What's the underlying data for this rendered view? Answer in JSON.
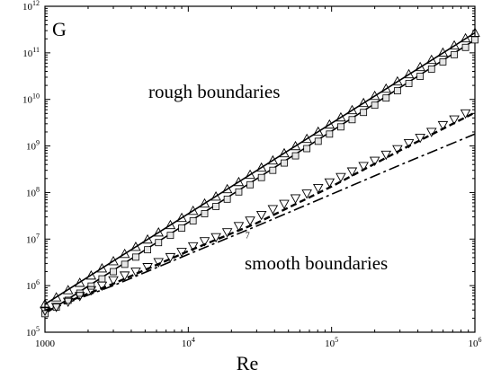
{
  "chart_data": {
    "type": "scatter",
    "title": "",
    "xlabel": "Re",
    "ylabel": "G",
    "xscale": "log",
    "yscale": "log",
    "xlim": [
      1000,
      1000000
    ],
    "ylim": [
      100000,
      1000000000000
    ],
    "grid": false,
    "x_tick_labels": [
      {
        "base": "1000",
        "exp": ""
      },
      {
        "base": "10",
        "exp": "4"
      },
      {
        "base": "10",
        "exp": "5"
      },
      {
        "base": "10",
        "exp": "6"
      }
    ],
    "y_tick_labels": [
      {
        "base": "10",
        "exp": "5"
      },
      {
        "base": "10",
        "exp": "6"
      },
      {
        "base": "10",
        "exp": "7"
      },
      {
        "base": "10",
        "exp": "8"
      },
      {
        "base": "10",
        "exp": "9"
      },
      {
        "base": "10",
        "exp": "10"
      },
      {
        "base": "10",
        "exp": "11"
      },
      {
        "base": "10",
        "exp": "12"
      }
    ],
    "annotations": [
      "rough boundaries",
      "smooth boundaries"
    ],
    "series": [
      {
        "marker": "triangle-up",
        "x": [
          1000,
          1200,
          1450,
          1750,
          2100,
          2500,
          3000,
          3600,
          4300,
          5200,
          6200,
          7500,
          9000,
          10800,
          13000,
          15600,
          18700,
          22500,
          27000,
          32400,
          38900,
          46700,
          56000,
          67200,
          80600,
          96700,
          116000,
          139000,
          167000,
          200000,
          240000,
          288000,
          346000,
          415000,
          498000,
          598000,
          718000,
          860000,
          1000000
        ],
        "y": [
          400000,
          560000,
          800000,
          1150000,
          1650000,
          2350000,
          3350000,
          4800000,
          6800000,
          9800000,
          13900000,
          20000000,
          28500000,
          40500000,
          58000000,
          82000000,
          118000000,
          168000000,
          240000000,
          342000000,
          488000000,
          696000000,
          992000000,
          1420000000,
          2020000000,
          2880000000,
          4110000000,
          5870000000,
          8370000000,
          11900000000,
          17000000000,
          24300000000,
          34700000000,
          49500000000,
          70700000000,
          101000000000,
          144000000000,
          205000000000,
          270000000000
        ]
      },
      {
        "marker": "square",
        "x": [
          1000,
          1200,
          1450,
          1750,
          2100,
          2500,
          3000,
          3600,
          4300,
          5200,
          6200,
          7500,
          9000,
          10800,
          13000,
          15600,
          18700,
          22500,
          27000,
          32400,
          38900,
          46700,
          56000,
          67200,
          80600,
          96700,
          116000,
          139000,
          167000,
          200000,
          240000,
          288000,
          346000,
          415000,
          498000,
          598000,
          718000,
          860000,
          1000000
        ],
        "y": [
          250000,
          345000,
          485000,
          690000,
          980000,
          1400000,
          2000000,
          2870000,
          4100000,
          5900000,
          8400000,
          12000000,
          17200000,
          24600000,
          35200000,
          50300000,
          72000000,
          103000000,
          147000000,
          210000000,
          300000000,
          430000000,
          614000000,
          878000000,
          1260000000,
          1800000000,
          2570000000,
          3670000000,
          5250000000,
          7500000000,
          10700000000,
          15300000000,
          21900000000,
          31300000000,
          44800000000,
          64000000000,
          91500000000,
          131000000000,
          190000000000
        ]
      },
      {
        "marker": "triangle-down",
        "x": [
          1000,
          1200,
          1450,
          1750,
          2100,
          2500,
          3000,
          3600,
          4300,
          5200,
          6200,
          7500,
          9000,
          10800,
          13000,
          15600,
          18700,
          22500,
          27000,
          32400,
          38900,
          46700,
          56000,
          67200,
          80600,
          96700,
          116000,
          139000,
          167000,
          200000,
          240000,
          288000,
          346000,
          415000,
          498000,
          598000,
          718000,
          860000
        ],
        "y": [
          290000,
          350000,
          450000,
          600000,
          800000,
          1000000,
          1300000,
          1650000,
          2000000,
          2500000,
          3200000,
          4100000,
          5300000,
          7000000,
          9000000,
          11000000,
          14000000,
          19000000,
          25000000,
          33000000,
          44000000,
          57000000,
          75000000,
          95000000,
          125000000,
          165000000,
          215000000,
          283000000,
          370000000,
          480000000,
          650000000,
          850000000,
          1150000000,
          1500000000,
          2000000000,
          2800000000,
          3700000000,
          5000000000
        ]
      }
    ],
    "fits": [
      {
        "style": "solid",
        "x": [
          1000,
          1000000
        ],
        "y": [
          400000,
          270000000000
        ]
      },
      {
        "style": "solid",
        "x": [
          1000,
          1000000
        ],
        "y": [
          250000,
          190000000000
        ]
      },
      {
        "style": "dashed",
        "x": [
          1000,
          3000,
          10000,
          30000,
          100000,
          300000,
          1000000
        ],
        "y": [
          290000,
          1100000,
          5500000,
          22000000,
          135000000,
          800000000,
          5200000000
        ]
      },
      {
        "style": "dash-dot",
        "x": [
          1000,
          3000,
          10000,
          30000,
          100000,
          300000,
          1000000
        ],
        "y": [
          280000,
          1000000,
          4700000,
          19000000,
          92000000,
          390000000,
          1800000000
        ]
      }
    ],
    "point_labels": [
      {
        "text": "7",
        "x": 25000,
        "y": 12500000
      }
    ]
  }
}
